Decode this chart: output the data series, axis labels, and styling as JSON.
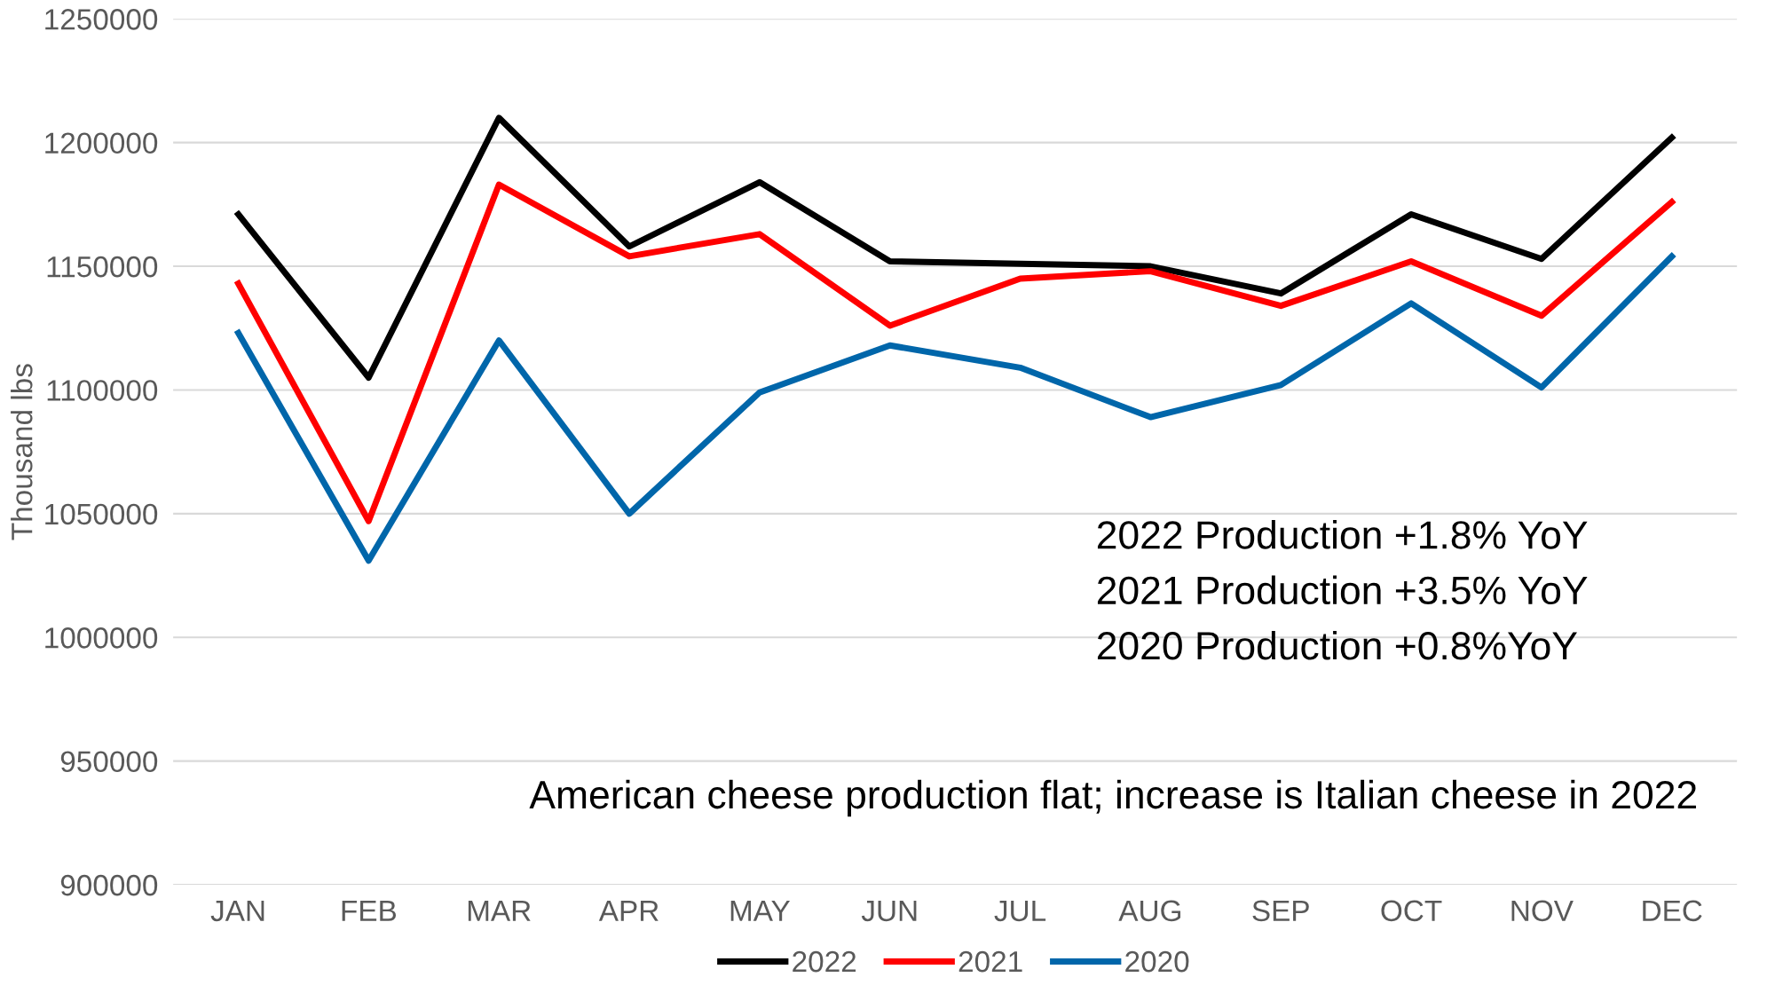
{
  "chart_data": {
    "type": "line",
    "ylabel": "Thousand lbs",
    "categories": [
      "JAN",
      "FEB",
      "MAR",
      "APR",
      "MAY",
      "JUN",
      "JUL",
      "AUG",
      "SEP",
      "OCT",
      "NOV",
      "DEC"
    ],
    "series": [
      {
        "name": "2022",
        "color": "#000000",
        "values": [
          1171000,
          1105000,
          1210000,
          1158000,
          1184000,
          1152000,
          1151000,
          1150000,
          1139000,
          1171000,
          1153000,
          1202000
        ]
      },
      {
        "name": "2021",
        "color": "#ff0000",
        "values": [
          1143000,
          1047000,
          1183000,
          1154000,
          1163000,
          1126000,
          1145000,
          1148000,
          1134000,
          1152000,
          1130000,
          1176000
        ]
      },
      {
        "name": "2020",
        "color": "#0066aa",
        "values": [
          1123000,
          1031000,
          1120000,
          1050000,
          1099000,
          1118000,
          1109000,
          1089000,
          1102000,
          1135000,
          1101000,
          1154000
        ]
      }
    ],
    "ylim": [
      900000,
      1250000
    ],
    "yticks": [
      900000,
      950000,
      1000000,
      1050000,
      1100000,
      1150000,
      1200000,
      1250000
    ],
    "grid": "y",
    "legend": "bottom",
    "marker": "none",
    "line_style": "solid",
    "annotations": [
      "2022 Production +1.8% YoY",
      "2021 Production +3.5% YoY",
      "2020 Production +0.8%YoY",
      "American cheese production flat; increase is Italian cheese in 2022"
    ]
  }
}
